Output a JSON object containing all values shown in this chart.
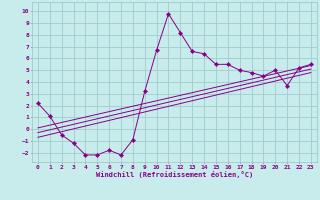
{
  "xlabel": "Windchill (Refroidissement éolien,°C)",
  "xlim": [
    -0.5,
    23.5
  ],
  "ylim": [
    -2.8,
    10.8
  ],
  "xticks": [
    0,
    1,
    2,
    3,
    4,
    5,
    6,
    7,
    8,
    9,
    10,
    11,
    12,
    13,
    14,
    15,
    16,
    17,
    18,
    19,
    20,
    21,
    22,
    23
  ],
  "yticks": [
    -2,
    -1,
    0,
    1,
    2,
    3,
    4,
    5,
    6,
    7,
    8,
    9,
    10
  ],
  "bg_color": "#c8ecec",
  "grid_color": "#a0cccc",
  "line_color": "#880088",
  "data_x": [
    0,
    1,
    2,
    3,
    4,
    5,
    6,
    7,
    8,
    9,
    10,
    11,
    12,
    13,
    14,
    15,
    16,
    17,
    18,
    19,
    20,
    21,
    22,
    23
  ],
  "data_y": [
    2.2,
    1.1,
    -0.5,
    -1.2,
    -2.2,
    -2.2,
    -1.8,
    -2.2,
    -0.9,
    3.2,
    6.7,
    9.8,
    8.2,
    6.6,
    6.4,
    5.5,
    5.5,
    5.0,
    4.8,
    4.5,
    5.0,
    3.7,
    5.2,
    5.5
  ],
  "reg_lines": [
    {
      "x0": 0,
      "y0": -0.7,
      "x1": 23,
      "y1": 4.8
    },
    {
      "x0": 0,
      "y0": -0.3,
      "x1": 23,
      "y1": 5.1
    },
    {
      "x0": 0,
      "y0": 0.1,
      "x1": 23,
      "y1": 5.4
    }
  ]
}
